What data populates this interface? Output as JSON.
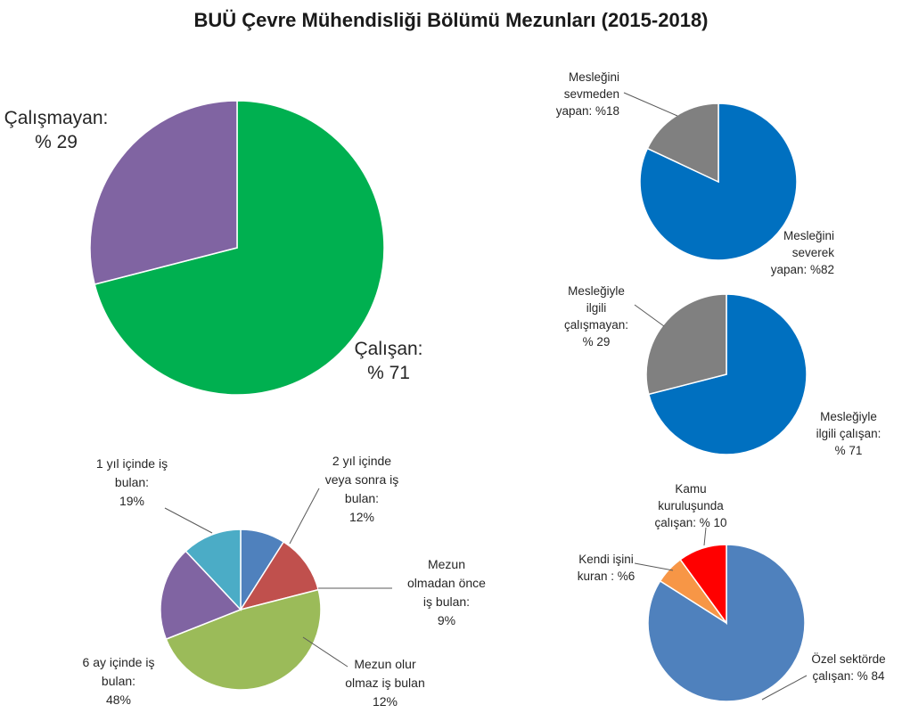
{
  "title": "BUÜ Çevre Mühendisliği Bölümü Mezunları (2015-2018)",
  "chart_data": [
    {
      "type": "pie",
      "slices": [
        {
          "label": [
            "Çalışan:",
            "% 71"
          ],
          "value": 71,
          "color": "#00b050"
        },
        {
          "label": [
            "Çalışmayan:",
            "% 29"
          ],
          "value": 29,
          "color": "#8064a2"
        }
      ]
    },
    {
      "type": "pie",
      "slices": [
        {
          "label": [
            "Mesleğini",
            "severek",
            "yapan: %82"
          ],
          "value": 82,
          "color": "#0070c0"
        },
        {
          "label": [
            "Mesleğini",
            "sevmeden",
            "yapan: %18"
          ],
          "value": 18,
          "color": "#808080"
        }
      ]
    },
    {
      "type": "pie",
      "slices": [
        {
          "label": [
            "Mesleğiyle",
            "ilgili çalışan:",
            "% 71"
          ],
          "value": 71,
          "color": "#0070c0"
        },
        {
          "label": [
            "Mesleğiyle",
            "ilgili",
            "çalışmayan:",
            "% 29"
          ],
          "value": 29,
          "color": "#808080"
        }
      ]
    },
    {
      "type": "pie",
      "slices": [
        {
          "label": [
            "Mezun",
            "olmadan önce",
            "iş bulan:",
            "9%"
          ],
          "value": 9,
          "color": "#4f81bd"
        },
        {
          "label": [
            "Mezun olur",
            "olmaz iş bulan",
            "12%"
          ],
          "value": 12,
          "color": "#c0504d"
        },
        {
          "label": [
            "6 ay içinde iş",
            "bulan:",
            "48%"
          ],
          "value": 48,
          "color": "#9bbb59"
        },
        {
          "label": [
            "1 yıl içinde iş",
            "bulan:",
            "19%"
          ],
          "value": 19,
          "color": "#8064a2"
        },
        {
          "label": [
            "2 yıl içinde",
            "veya sonra iş",
            "bulan:",
            "12%"
          ],
          "value": 12,
          "color": "#4bacc6"
        }
      ]
    },
    {
      "type": "pie",
      "slices": [
        {
          "label": [
            "Özel sektörde",
            "çalışan: % 84"
          ],
          "value": 84,
          "color": "#4f81bd"
        },
        {
          "label": [
            "Kendi işini",
            "kuran : %6"
          ],
          "value": 6,
          "color": "#f79646"
        },
        {
          "label": [
            "Kamu",
            "kuruluşunda",
            "çalışan: % 10"
          ],
          "value": 10,
          "color": "#ff0000"
        }
      ]
    }
  ]
}
